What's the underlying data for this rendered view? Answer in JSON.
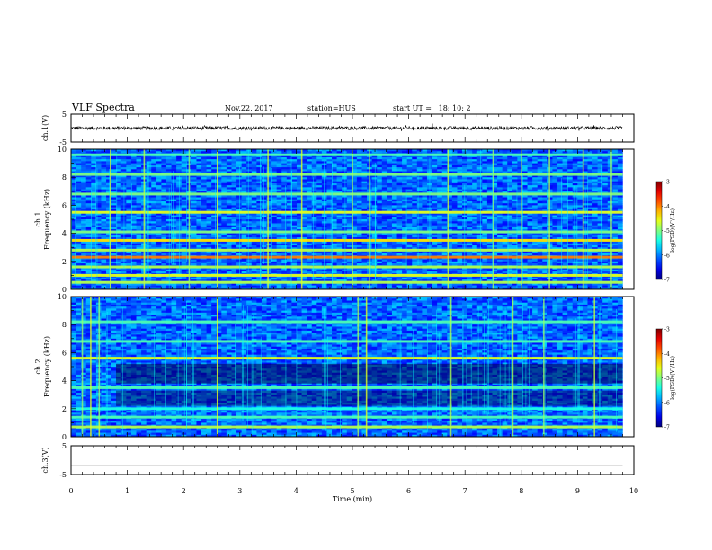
{
  "header": {
    "title": "VLF Spectra",
    "date": "Nov.22, 2017",
    "station": "station=HUS",
    "start": "start UT =   18: 10: 2"
  },
  "chart_data": [
    {
      "type": "line",
      "panel": "ch1-waveform",
      "ylabel": "ch.1(V)",
      "ylim": [
        -5,
        5
      ],
      "yticks": [
        "5",
        "-5"
      ],
      "xlim": [
        0,
        10
      ],
      "description_values": {
        "baseline": 0,
        "typical_amplitude": 0.6,
        "max_spike": 1.6,
        "spike_time": 6.42
      },
      "color": "#000000"
    },
    {
      "type": "heatmap",
      "panel": "ch1-spectrogram",
      "ylabel": "ch.1\nFrequency (kHz)",
      "ylim": [
        0,
        10
      ],
      "yticks": [
        "0",
        "2",
        "4",
        "6",
        "8",
        "10"
      ],
      "xlim": [
        0,
        10
      ],
      "data_end_time": 9.8,
      "bands_khz": [
        {
          "f": 0.5,
          "level": 0.55
        },
        {
          "f": 1.0,
          "level": 0.6
        },
        {
          "f": 1.6,
          "level": 0.55
        },
        {
          "f": 2.3,
          "level": 0.75
        },
        {
          "f": 2.8,
          "level": 0.55
        },
        {
          "f": 3.5,
          "level": 0.65
        },
        {
          "f": 4.1,
          "level": 0.5
        },
        {
          "f": 5.5,
          "level": 0.6
        },
        {
          "f": 6.8,
          "level": 0.5
        },
        {
          "f": 8.2,
          "level": 0.5
        },
        {
          "f": 9.6,
          "level": 0.45
        }
      ],
      "spikes_min": [
        0.7,
        1.3,
        2.1,
        2.6,
        3.5,
        4.1,
        5.0,
        5.3,
        6.7,
        7.5,
        8.0,
        8.5,
        9.1,
        9.6
      ],
      "colorbar": {
        "label": "log(PSD)(V²/Hz)",
        "ticks": [
          "-3",
          "-4",
          "-5",
          "-6",
          "-7"
        ],
        "range": [
          -7,
          -3
        ]
      }
    },
    {
      "type": "heatmap",
      "panel": "ch2-spectrogram",
      "ylabel": "ch.2\nFrequency (kHz)",
      "ylim": [
        0,
        10
      ],
      "yticks": [
        "0",
        "2",
        "4",
        "6",
        "8",
        "10"
      ],
      "xlim": [
        0,
        10
      ],
      "data_end_time": 9.8,
      "bands_khz": [
        {
          "f": 0.7,
          "level": 0.55
        },
        {
          "f": 1.4,
          "level": 0.45
        },
        {
          "f": 2.0,
          "level": 0.4
        },
        {
          "f": 3.5,
          "level": 0.45
        },
        {
          "f": 5.6,
          "level": 0.6
        },
        {
          "f": 6.8,
          "level": 0.45
        },
        {
          "f": 8.2,
          "level": 0.45
        }
      ],
      "spikes_min": [
        0.2,
        0.35,
        0.5,
        2.6,
        5.1,
        5.25,
        6.75,
        7.85,
        8.4,
        9.3
      ],
      "colorbar": {
        "label": "log(PSD)(V²/Hz)",
        "ticks": [
          "-3",
          "-4",
          "-5",
          "-6",
          "-7"
        ],
        "range": [
          -7,
          -3
        ]
      }
    },
    {
      "type": "line",
      "panel": "ch3-waveform",
      "ylabel": "ch.3(V)",
      "ylim": [
        -5,
        5
      ],
      "yticks": [
        "5",
        "-5"
      ],
      "xlim": [
        0,
        10
      ],
      "x": [
        0,
        9.8
      ],
      "y": [
        -2.0,
        -2.0
      ],
      "color": "#000000"
    }
  ],
  "x_axis": {
    "label": "Time (min)",
    "ticks": [
      "0",
      "1",
      "2",
      "3",
      "4",
      "5",
      "6",
      "7",
      "8",
      "9",
      "10"
    ],
    "range": [
      0,
      10
    ]
  }
}
